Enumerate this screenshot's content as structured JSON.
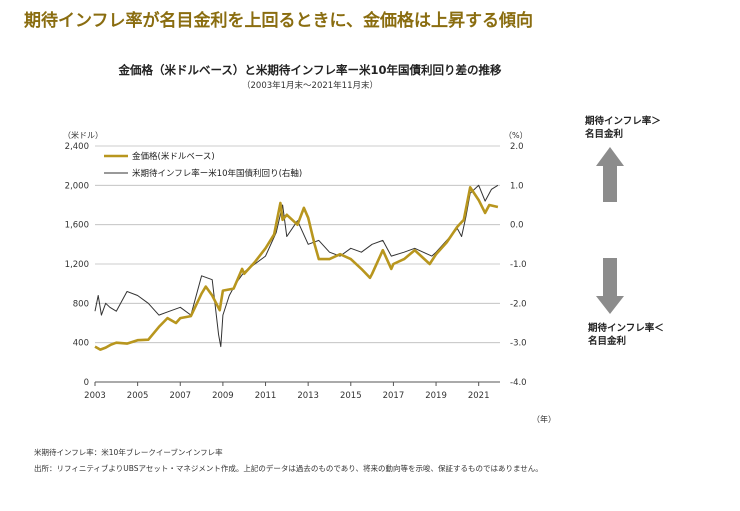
{
  "headline": "期待インフレ率が名目金利を上回るときに、金価格は上昇する傾向",
  "side": {
    "up_line1": "期待インフレ率＞",
    "up_line2": "名目金利",
    "down_line1": "期待インフレ率＜",
    "down_line2": "名目金利"
  },
  "notes": {
    "definition": "米期待インフレ率：米10年ブレークイーブンインフレ率",
    "source": "出所：リフィニティブよりUBSアセット・マネジメント作成。上記のデータは過去のものであり、将来の動向等を示唆、保証するものではありません。"
  },
  "colors": {
    "gold": "#b8961e",
    "spread": "#333333",
    "grid": "#bbbbbb",
    "arrow": "#8c8c8c"
  },
  "chart_data": {
    "type": "line",
    "title": "金価格（米ドルベース）と米期待インフレ率ー米10年国債利回り差の推移",
    "subtitle": "（2003年1月末〜2021年11月末）",
    "y_left_unit": "（米ドル）",
    "y_right_unit": "（%）",
    "x_unit": "（年）",
    "ylim_left": [
      0,
      2400
    ],
    "ylim_right": [
      -4.0,
      2.0
    ],
    "xlim": [
      2003.0,
      2022.0
    ],
    "x_ticks": [
      "2003",
      "2005",
      "2007",
      "2009",
      "2011",
      "2013",
      "2015",
      "2017",
      "2019",
      "2021"
    ],
    "y_left_ticks": [
      "0",
      "400",
      "800",
      "1,200",
      "1,600",
      "2,000",
      "2,400"
    ],
    "y_right_ticks": [
      "-4.0",
      "-3.0",
      "-2.0",
      "-1.0",
      "0.0",
      "1.0",
      "2.0"
    ],
    "grid": true,
    "legend_position": "top-left",
    "series": [
      {
        "name": "金価格(米ドルベース)",
        "axis": "left",
        "x": [
          2003.0,
          2003.25,
          2003.5,
          2003.75,
          2004.0,
          2004.5,
          2005.0,
          2005.5,
          2006.0,
          2006.4,
          2006.8,
          2007.0,
          2007.5,
          2008.0,
          2008.2,
          2008.5,
          2008.85,
          2009.0,
          2009.5,
          2009.9,
          2010.0,
          2010.5,
          2011.0,
          2011.4,
          2011.7,
          2011.8,
          2012.0,
          2012.5,
          2012.8,
          2013.0,
          2013.3,
          2013.5,
          2014.0,
          2014.5,
          2015.0,
          2015.5,
          2015.9,
          2016.0,
          2016.5,
          2016.9,
          2017.0,
          2017.5,
          2018.0,
          2018.7,
          2019.0,
          2019.5,
          2020.0,
          2020.3,
          2020.6,
          2021.0,
          2021.3,
          2021.5,
          2021.9
        ],
        "values": [
          360,
          330,
          350,
          380,
          400,
          390,
          425,
          430,
          560,
          650,
          600,
          650,
          670,
          900,
          970,
          880,
          730,
          930,
          950,
          1150,
          1100,
          1220,
          1360,
          1500,
          1820,
          1650,
          1700,
          1600,
          1770,
          1670,
          1400,
          1250,
          1250,
          1300,
          1250,
          1150,
          1060,
          1100,
          1340,
          1150,
          1200,
          1250,
          1340,
          1200,
          1300,
          1420,
          1580,
          1650,
          1980,
          1850,
          1720,
          1800,
          1780
        ]
      },
      {
        "name": "米期待インフレ率ー米10年国債利回り(右軸)",
        "axis": "right",
        "x": [
          2003.0,
          2003.15,
          2003.3,
          2003.5,
          2003.7,
          2004.0,
          2004.5,
          2005.0,
          2005.5,
          2006.0,
          2006.5,
          2007.0,
          2007.5,
          2008.0,
          2008.5,
          2008.8,
          2008.9,
          2009.0,
          2009.3,
          2009.6,
          2010.0,
          2010.5,
          2011.0,
          2011.5,
          2011.8,
          2012.0,
          2012.5,
          2013.0,
          2013.5,
          2014.0,
          2014.5,
          2015.0,
          2015.5,
          2016.0,
          2016.5,
          2016.9,
          2017.5,
          2018.0,
          2018.8,
          2019.0,
          2019.5,
          2020.0,
          2020.2,
          2020.4,
          2020.6,
          2021.0,
          2021.3,
          2021.6,
          2021.9
        ],
        "values": [
          -2.2,
          -1.8,
          -2.3,
          -2.0,
          -2.1,
          -2.2,
          -1.7,
          -1.8,
          -2.0,
          -2.3,
          -2.2,
          -2.1,
          -2.3,
          -1.3,
          -1.4,
          -2.8,
          -3.1,
          -2.3,
          -1.8,
          -1.5,
          -1.2,
          -1.0,
          -0.8,
          -0.2,
          0.5,
          -0.3,
          0.1,
          -0.5,
          -0.4,
          -0.7,
          -0.8,
          -0.6,
          -0.7,
          -0.5,
          -0.4,
          -0.8,
          -0.7,
          -0.6,
          -0.8,
          -0.7,
          -0.4,
          -0.1,
          -0.3,
          0.2,
          0.8,
          1.0,
          0.6,
          0.9,
          1.0
        ]
      }
    ]
  }
}
